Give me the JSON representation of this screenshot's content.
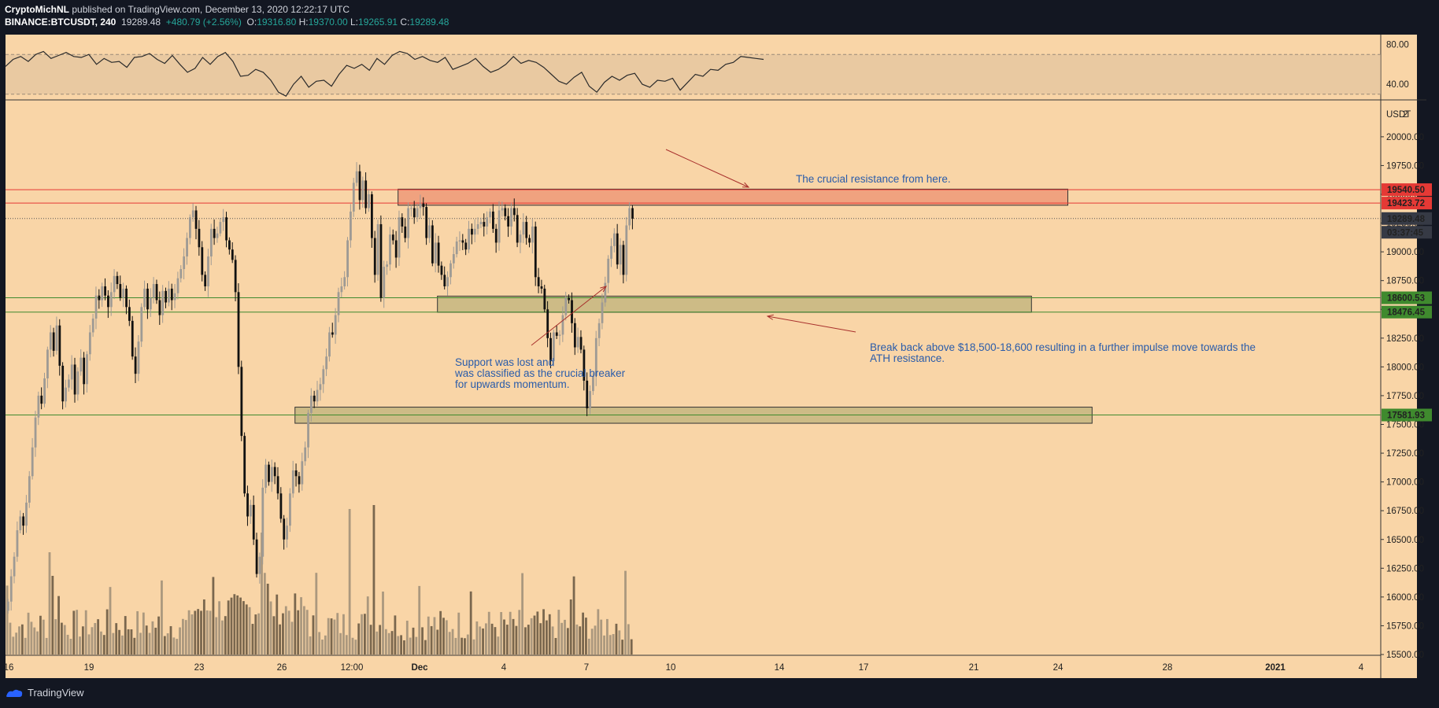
{
  "header": {
    "author": "CryptoMichNL",
    "published_text": "published on TradingView.com, December 13, 2020 12:22:17 UTC",
    "symbol": "BINANCE:BTCUSDT, 240",
    "last": "19289.48",
    "change": "+480.79 (+2.56%)",
    "o_label": "O:",
    "o_value": "19316.80",
    "h_label": "H:",
    "h_value": "19370.00",
    "l_label": "L:",
    "l_value": "19265.91",
    "c_label": "C:",
    "c_value": "19289.48"
  },
  "footer": {
    "brand": "TradingView"
  },
  "annotations": {
    "resistance_note": "The crucial resistance from here.",
    "support_note": "Support was lost and\nwas classified as the crucial breaker\nfor upwards momentum.",
    "breakout_note": "Break back above $18,500-18,600 resulting in a further impulse move towards the\nATH resistance."
  },
  "colors": {
    "background": "#f9d5a7",
    "resistance_zone": "#f0a27f",
    "support_zone": "#cdbb86",
    "red_line": "#e53935",
    "green_line": "#3f8a2e",
    "arrow": "#a8302c",
    "text_blue": "#2a5caa",
    "candle_up": "#9e9a94",
    "candle_down": "#111111"
  },
  "chart_data": [
    {
      "type": "line",
      "title": "",
      "indicator_axis": [
        "80.00",
        "40.00"
      ],
      "ylim": [
        25,
        90
      ],
      "band": [
        30,
        70
      ],
      "x": [
        0,
        2,
        4,
        6,
        8,
        10,
        12,
        14,
        16,
        18,
        20,
        22,
        24,
        26,
        28,
        30,
        32,
        34,
        36,
        38,
        40,
        42,
        44,
        46,
        48,
        50,
        52,
        54,
        56,
        58,
        60,
        62,
        64,
        66,
        68,
        70,
        72,
        74,
        76,
        78,
        80,
        82,
        84,
        86,
        88,
        90,
        92,
        94,
        96,
        98,
        100,
        102,
        104,
        106,
        108,
        110,
        112,
        114,
        116,
        118,
        120,
        122,
        124,
        126,
        128,
        130,
        132,
        134,
        136,
        138,
        140,
        142,
        144,
        146,
        148,
        150,
        152,
        154,
        156,
        158,
        160,
        162,
        164,
        166,
        168,
        170,
        172,
        174,
        176,
        178,
        180,
        182,
        184,
        186,
        188,
        190,
        192,
        194,
        196,
        198,
        200
      ],
      "values": [
        58,
        65,
        68,
        63,
        70,
        73,
        66,
        69,
        72,
        68,
        67,
        70,
        60,
        66,
        62,
        63,
        57,
        67,
        68,
        71,
        65,
        61,
        69,
        60,
        52,
        56,
        67,
        60,
        68,
        72,
        63,
        48,
        49,
        55,
        52,
        44,
        32,
        28,
        40,
        48,
        37,
        43,
        44,
        38,
        50,
        59,
        56,
        60,
        54,
        66,
        60,
        69,
        73,
        71,
        65,
        68,
        64,
        62,
        67,
        55,
        58,
        61,
        66,
        58,
        52,
        55,
        60,
        68,
        61,
        64,
        62,
        57,
        50,
        43,
        40,
        47,
        52,
        38,
        32,
        42,
        48,
        44,
        49,
        51,
        40,
        37,
        44,
        43,
        46,
        34,
        42,
        50,
        48,
        55,
        54,
        60,
        62,
        68,
        67,
        66,
        65
      ],
      "source_note": ""
    },
    {
      "type": "candlestick",
      "title": "BINANCE:BTCUSDT, 240",
      "ylabel": "USDT",
      "ylim": [
        15500,
        20300
      ],
      "y_ticks": [
        "15500.00",
        "15750.00",
        "16000.00",
        "16250.00",
        "16500.00",
        "16750.00",
        "17000.00",
        "17250.00",
        "17500.00",
        "17750.00",
        "18000.00",
        "18250.00",
        "18500.00",
        "18750.00",
        "19000.00",
        "19250.00",
        "19500.00",
        "19750.00",
        "20000.00"
      ],
      "x_ticks": [
        "16",
        "19",
        "23",
        "26",
        "12:00",
        "Dec",
        "4",
        "7",
        "10",
        "14",
        "17",
        "21",
        "24",
        "28",
        "2021",
        "4"
      ],
      "price_labels": [
        {
          "text": "19540.50",
          "value": 19540.5,
          "color": "#e53935"
        },
        {
          "text": "19423.72",
          "value": 19423.72,
          "color": "#e53935"
        },
        {
          "text": "19289.48",
          "value": 19289.48,
          "color": "#363a45"
        },
        {
          "text": "03:37:45",
          "value": 19170,
          "color": "#363a45"
        },
        {
          "text": "18600.53",
          "value": 18600.53,
          "color": "#3f8a2e"
        },
        {
          "text": "18476.45",
          "value": 18476.45,
          "color": "#3f8a2e"
        },
        {
          "text": "17581.93",
          "value": 17581.93,
          "color": "#3f8a2e"
        }
      ],
      "top_scale_label": "2",
      "horizontal_lines": [
        19540.5,
        19423.72,
        18600.53,
        18476.45,
        17581.93
      ],
      "zones": [
        {
          "name": "resistance",
          "top": 19545,
          "bottom": 19405,
          "from_bar": 129,
          "to_bar": 350
        },
        {
          "name": "support",
          "top": 18615,
          "bottom": 18475,
          "from_bar": 142,
          "to_bar": 338
        },
        {
          "name": "breaker-support",
          "top": 17650,
          "bottom": 17510,
          "from_bar": 95,
          "to_bar": 358
        }
      ],
      "closes": [
        15960,
        16180,
        16350,
        16580,
        16700,
        16620,
        16820,
        17050,
        17300,
        17560,
        17750,
        17680,
        17900,
        18150,
        18300,
        18140,
        18360,
        18010,
        17700,
        17820,
        17890,
        18020,
        17760,
        17960,
        18080,
        17850,
        18110,
        18300,
        18420,
        18620,
        18580,
        18700,
        18620,
        18520,
        18650,
        18790,
        18720,
        18600,
        18680,
        18520,
        18400,
        18090,
        17940,
        18220,
        18520,
        18680,
        18500,
        18600,
        18720,
        18580,
        18450,
        18660,
        18560,
        18680,
        18580,
        18640,
        18770,
        18850,
        18960,
        19120,
        19300,
        19360,
        19200,
        19040,
        18800,
        18700,
        18960,
        19200,
        19120,
        19160,
        19260,
        19300,
        19100,
        19020,
        18930,
        18650,
        18000,
        17400,
        16900,
        16700,
        16800,
        16500,
        16200,
        16350,
        16950,
        17150,
        17000,
        17130,
        17050,
        16900,
        16680,
        16500,
        16620,
        16900,
        17100,
        17050,
        16980,
        17180,
        17300,
        17600,
        17750,
        17700,
        17800,
        17850,
        17980,
        18090,
        18300,
        18280,
        18450,
        18650,
        18700,
        18780,
        19100,
        19350,
        19600,
        19700,
        19450,
        19620,
        19380,
        19500,
        19120,
        18800,
        19240,
        18600,
        18870,
        18890,
        19150,
        19100,
        18950,
        19300,
        19220,
        19120,
        19380,
        19380,
        19300,
        19380,
        19420,
        19390,
        19120,
        19230,
        18900,
        19080,
        18880,
        18800,
        18700,
        18780,
        18900,
        18980,
        19090,
        19100,
        19080,
        19020,
        19200,
        19150,
        19200,
        19240,
        19260,
        19220,
        19300,
        19350,
        19200,
        19080,
        19360,
        19380,
        19310,
        19220,
        19380,
        19320,
        19080,
        19150,
        19260,
        19120,
        19080,
        19220,
        18780,
        18700,
        18680,
        18500,
        18250,
        18050,
        18300,
        18270,
        18280,
        18450,
        18600,
        18580,
        18380,
        18170,
        18260,
        18150,
        17880,
        17640,
        17790,
        17920,
        18250,
        18380,
        18560,
        18730,
        18940,
        19050,
        19160,
        18890,
        19060,
        18800,
        19230,
        19380,
        19289
      ]
    }
  ]
}
